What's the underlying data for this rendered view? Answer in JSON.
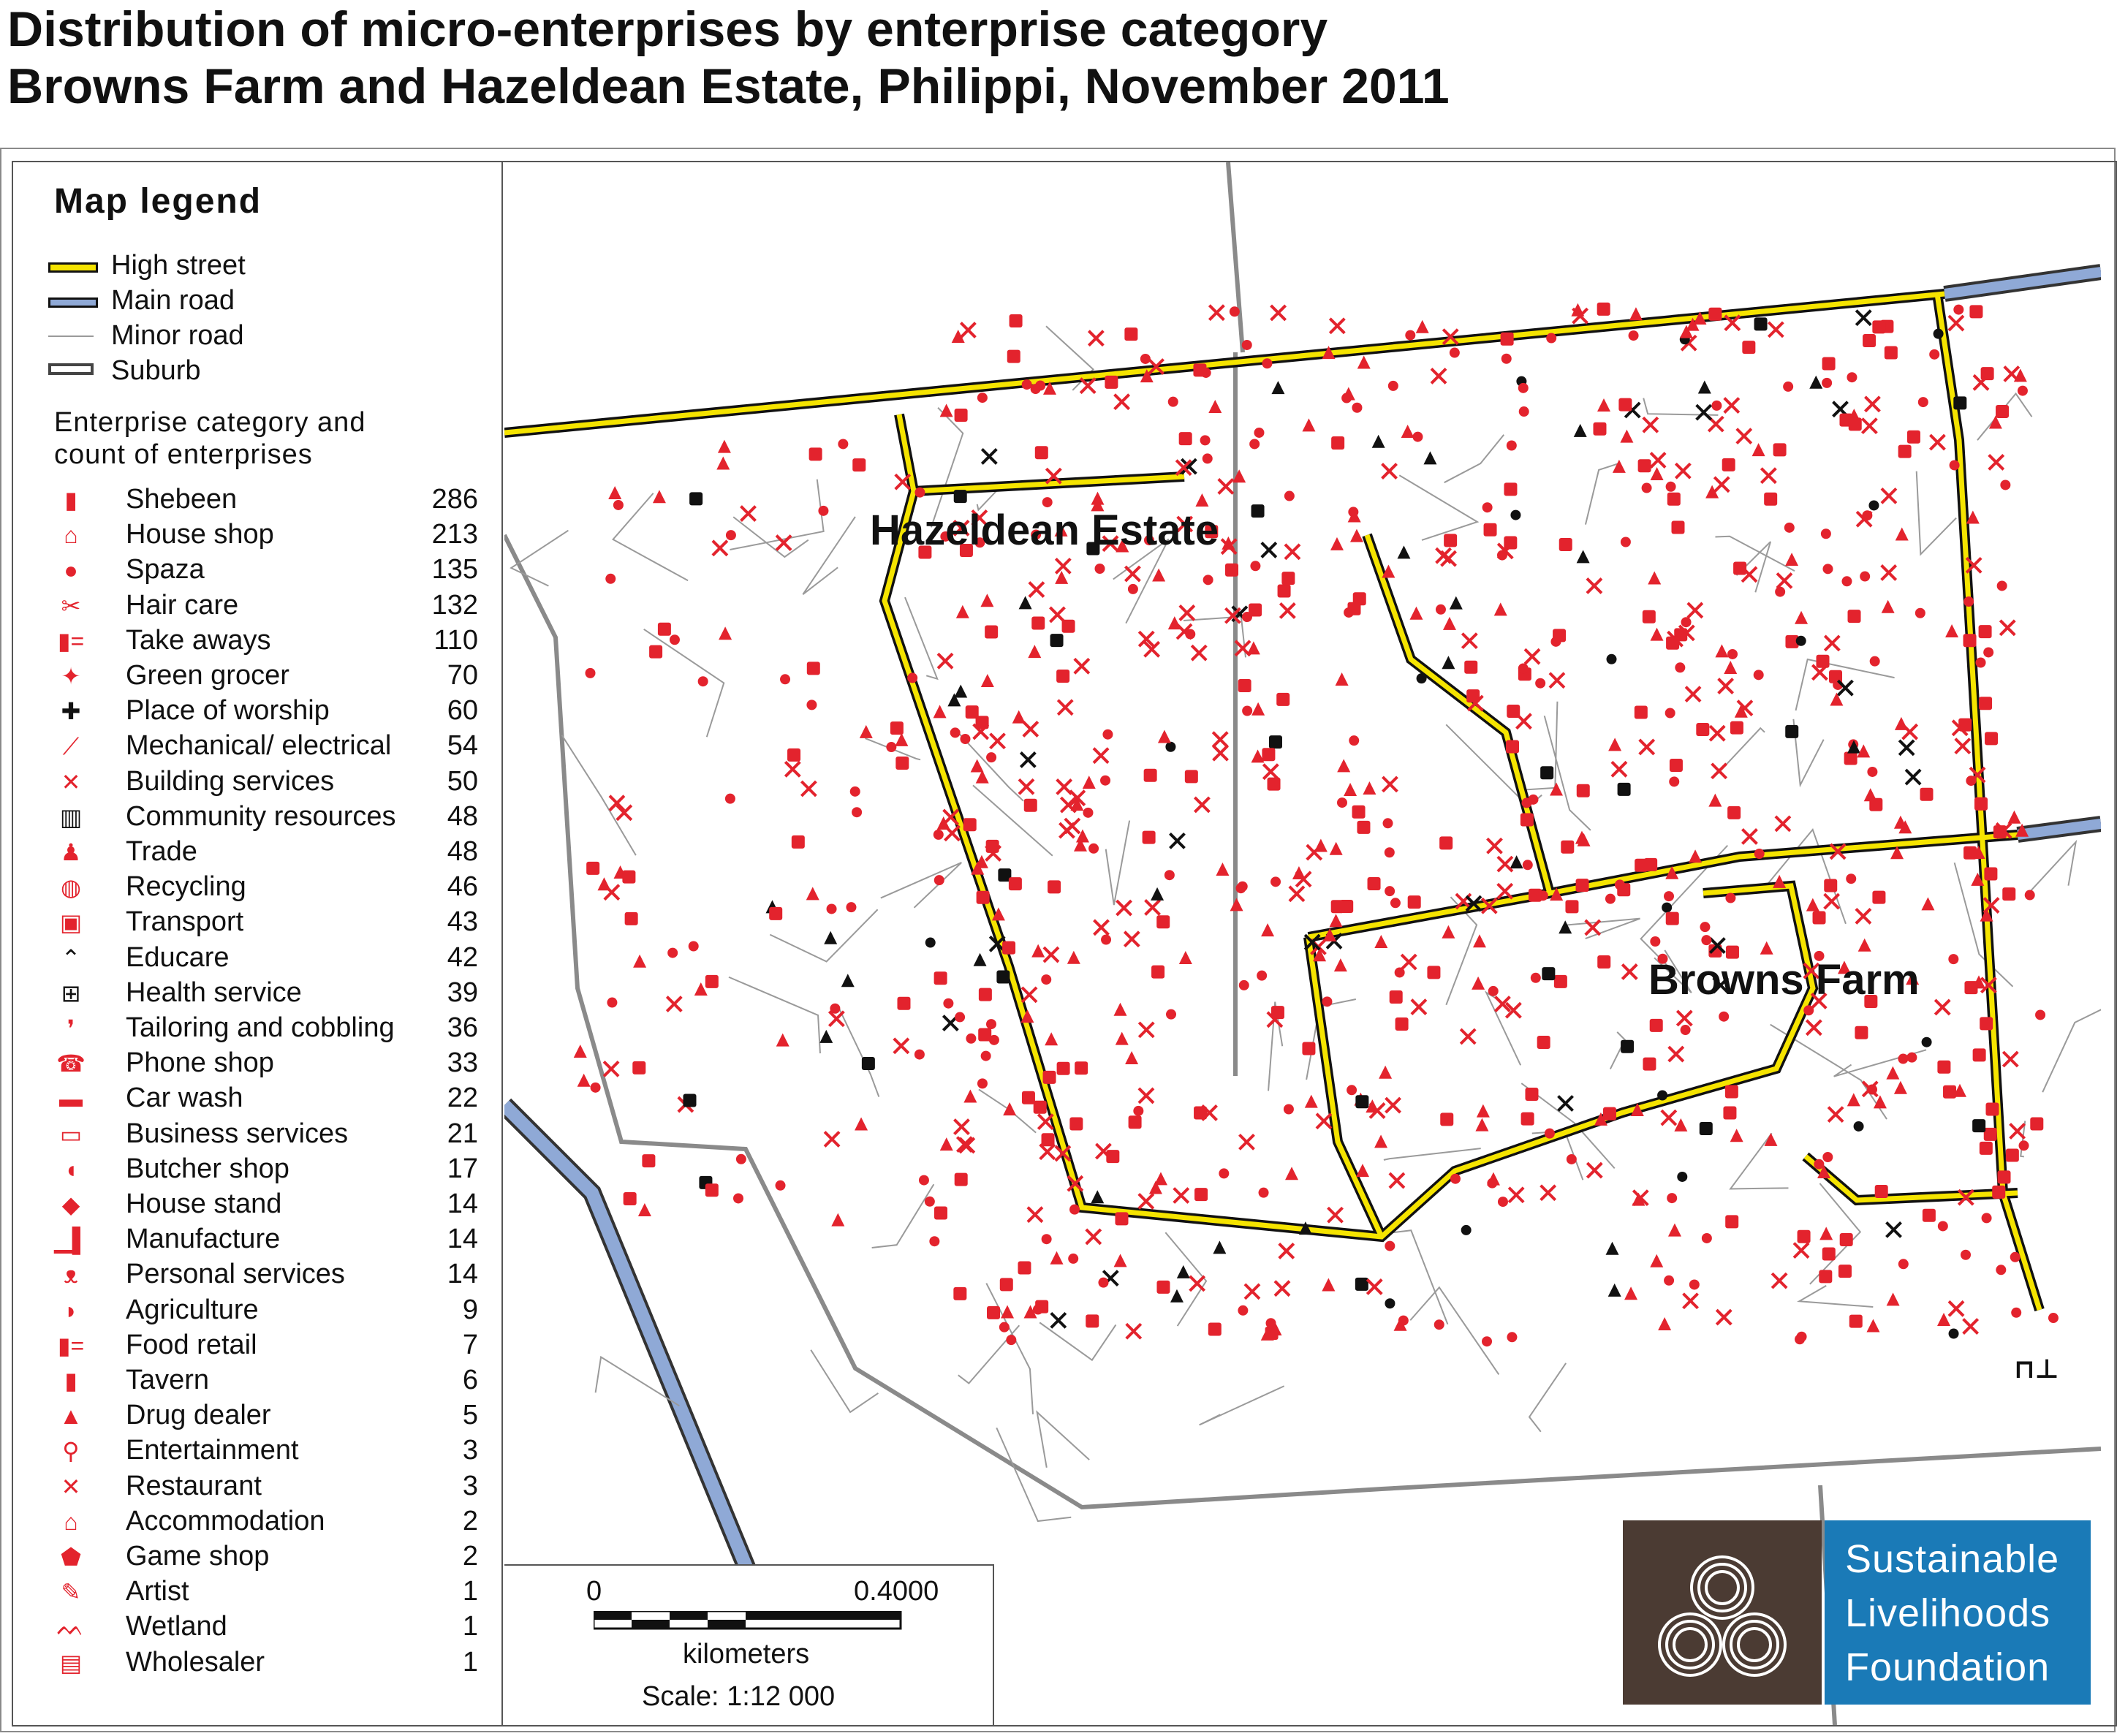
{
  "title": {
    "line1": "Distribution of micro-enterprises by enterprise category",
    "line2": "Browns Farm and Hazeldean Estate, Philippi, November 2011"
  },
  "legend": {
    "title": "Map legend",
    "lines": [
      {
        "label": "High street",
        "color": "#f5e400"
      },
      {
        "label": "Main road",
        "color": "#8fa9d6"
      },
      {
        "label": "Minor road",
        "color": "#9a9a9a"
      },
      {
        "label": "Suburb",
        "color": "#444444"
      }
    ],
    "category_header_1": "Enterprise category and",
    "category_header_2": "count of enterprises",
    "categories": [
      {
        "name": "Shebeen",
        "count": "286",
        "icon": "mug-icon"
      },
      {
        "name": "House shop",
        "count": "213",
        "icon": "house-icon"
      },
      {
        "name": "Spaza",
        "count": "135",
        "icon": "dot-icon"
      },
      {
        "name": "Hair care",
        "count": "132",
        "icon": "scissors-icon"
      },
      {
        "name": "Take aways",
        "count": "110",
        "icon": "takeaway-icon"
      },
      {
        "name": "Green grocer",
        "count": "70",
        "icon": "leaf-icon"
      },
      {
        "name": "Place of worship",
        "count": "60",
        "icon": "church-icon"
      },
      {
        "name": "Mechanical/ electrical",
        "count": "54",
        "icon": "wrench-icon"
      },
      {
        "name": "Building services",
        "count": "50",
        "icon": "tools-icon"
      },
      {
        "name": "Community resources",
        "count": "48",
        "icon": "building-icon"
      },
      {
        "name": "Trade",
        "count": "48",
        "icon": "person-icon"
      },
      {
        "name": "Recycling",
        "count": "46",
        "icon": "globe-icon"
      },
      {
        "name": "Transport",
        "count": "43",
        "icon": "bus-icon"
      },
      {
        "name": "Educare",
        "count": "42",
        "icon": "graduation-cap-icon"
      },
      {
        "name": "Health service",
        "count": "39",
        "icon": "health-cross-icon"
      },
      {
        "name": "Tailoring and cobbling",
        "count": "36",
        "icon": "footprint-icon"
      },
      {
        "name": "Phone shop",
        "count": "33",
        "icon": "phone-icon"
      },
      {
        "name": "Car wash",
        "count": "22",
        "icon": "car-icon"
      },
      {
        "name": "Business services",
        "count": "21",
        "icon": "laptop-icon"
      },
      {
        "name": "Butcher shop",
        "count": "17",
        "icon": "pig-icon"
      },
      {
        "name": "House stand",
        "count": "14",
        "icon": "diamond-icon"
      },
      {
        "name": "Manufacture",
        "count": "14",
        "icon": "factory-icon"
      },
      {
        "name": "Personal services",
        "count": "14",
        "icon": "people-icon"
      },
      {
        "name": "Agriculture",
        "count": "9",
        "icon": "cow-icon"
      },
      {
        "name": "Food retail",
        "count": "7",
        "icon": "food-retail-icon"
      },
      {
        "name": "Tavern",
        "count": "6",
        "icon": "mug-icon"
      },
      {
        "name": "Drug dealer",
        "count": "5",
        "icon": "triangle-icon"
      },
      {
        "name": "Entertainment",
        "count": "3",
        "icon": "entertainment-icon"
      },
      {
        "name": "Restaurant",
        "count": "3",
        "icon": "cutlery-icon"
      },
      {
        "name": "Accommodation",
        "count": "2",
        "icon": "bed-icon"
      },
      {
        "name": "Game shop",
        "count": "2",
        "icon": "game-icon"
      },
      {
        "name": "Artist",
        "count": "1",
        "icon": "pencil-icon"
      },
      {
        "name": "Wetland",
        "count": "1",
        "icon": "wetland-icon"
      },
      {
        "name": "Wholesaler",
        "count": "1",
        "icon": "wholesaler-icon"
      }
    ]
  },
  "map": {
    "labels": {
      "hazeldean": "Hazeldean Estate",
      "browns": "Browns Farm"
    },
    "colors": {
      "enterprise": "#e3232d",
      "enterprise_black": "#111111",
      "high_street": "#f5e400",
      "main_road": "#8fa9d6"
    }
  },
  "scale": {
    "start": "0",
    "end": "0.4000",
    "unit": "kilometers",
    "ratio": "Scale: 1:12 000"
  },
  "brand": {
    "line1": "Sustainable",
    "line2": "Livelihoods",
    "line3": "Foundation",
    "mark_color": "#4b3b33",
    "box_color": "#1a7ab7"
  }
}
